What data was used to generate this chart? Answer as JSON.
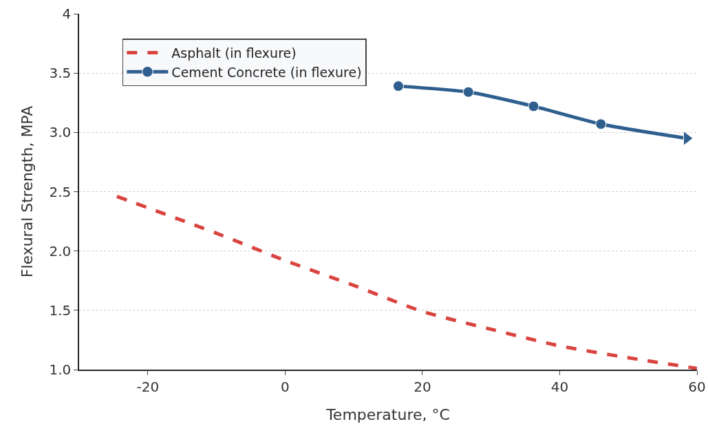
{
  "chart_data": {
    "type": "line",
    "xlabel": "Temperature, °C",
    "ylabel": "Flexural Strength, MPA",
    "xlim": [
      -30,
      60
    ],
    "xticks": [
      -20,
      0,
      20,
      40,
      60
    ],
    "ylim": [
      1,
      4
    ],
    "yticks": [
      {
        "value": 1,
        "label": "1.0"
      },
      1.5,
      {
        "value": 2,
        "label": "2.0"
      },
      2.5,
      {
        "value": 3,
        "label": "3.0"
      },
      3.5,
      4
    ],
    "grid": "y",
    "legend": "top left",
    "series": [
      {
        "name": "Asphalt (in flexure)",
        "color": "#d9443f",
        "line_style": "dashed",
        "marker": "none",
        "x": [
          -24.5,
          -10,
          0,
          10,
          20,
          30,
          40,
          50,
          60
        ],
        "values": [
          2.46,
          2.15,
          1.92,
          1.71,
          1.49,
          1.34,
          1.2,
          1.1,
          1.01
        ]
      },
      {
        "name": "Cement Concrete (in flexure)",
        "color": "#2f5f8f",
        "line_style": "solid",
        "marker": "circle",
        "x": [
          16.5,
          26.7,
          36.2,
          46,
          58.5
        ],
        "values": [
          3.39,
          3.34,
          3.22,
          3.07,
          2.95
        ]
      }
    ]
  }
}
